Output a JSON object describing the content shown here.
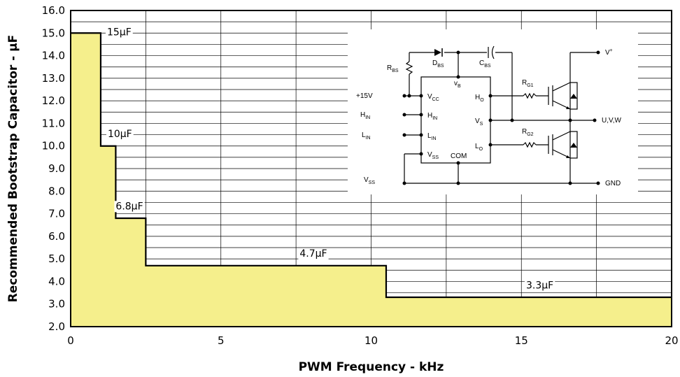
{
  "chart_data": {
    "type": "area",
    "xlabel": "PWM Frequency - kHz",
    "ylabel": "Recommended Bootstrap Capacitor - µF",
    "xlim": [
      0,
      20
    ],
    "ylim": [
      2.0,
      16.0
    ],
    "x_ticks": [
      "0",
      "5",
      "10",
      "15",
      "20"
    ],
    "y_ticks": [
      "2.0",
      "3.0",
      "4.0",
      "5.0",
      "6.0",
      "7.0",
      "8.0",
      "9.0",
      "10.0",
      "11.0",
      "12.0",
      "13.0",
      "14.0",
      "15.0",
      "16.0"
    ],
    "grid": true,
    "fill_color": "#f5ef8c",
    "line_color": "#000000",
    "steps": [
      {
        "x_start": 0,
        "x_end": 1.0,
        "value": 15.0,
        "label": "15µF"
      },
      {
        "x_start": 1.0,
        "x_end": 1.5,
        "value": 10.0,
        "label": "10µF"
      },
      {
        "x_start": 1.5,
        "x_end": 2.5,
        "value": 6.8,
        "label": "6.8µF"
      },
      {
        "x_start": 2.5,
        "x_end": 10.5,
        "value": 4.7,
        "label": "4.7µF"
      },
      {
        "x_start": 10.5,
        "x_end": 20,
        "value": 3.3,
        "label": "3.3µF"
      }
    ]
  },
  "schematic": {
    "left_labels": [
      {
        "main": "+15V",
        "sub": ""
      },
      {
        "main": "H",
        "sub": "IN"
      },
      {
        "main": "L",
        "sub": "IN"
      },
      {
        "main": "V",
        "sub": "SS"
      }
    ],
    "ic_pins_left": [
      {
        "main": "V",
        "sub": "CC"
      },
      {
        "main": "H",
        "sub": "IN"
      },
      {
        "main": "L",
        "sub": "IN"
      },
      {
        "main": "V",
        "sub": "SS"
      }
    ],
    "ic_pins_right": [
      {
        "main": "H",
        "sub": "O"
      },
      {
        "main": "V",
        "sub": "S"
      },
      {
        "main": "L",
        "sub": "O"
      }
    ],
    "ic_com": "COM",
    "ic_vb": {
      "main": "v",
      "sub": "B"
    },
    "rbs": {
      "main": "R",
      "sub": "BS"
    },
    "dbs": {
      "main": "D",
      "sub": "BS"
    },
    "cbs": {
      "main": "C",
      "sub": "BS"
    },
    "rg1": {
      "main": "R",
      "sub": "G1"
    },
    "rg2": {
      "main": "R",
      "sub": "G2"
    },
    "vplus": {
      "main": "V",
      "sup": "+"
    },
    "out_label": "U,V,W",
    "gnd_label": "GND"
  }
}
